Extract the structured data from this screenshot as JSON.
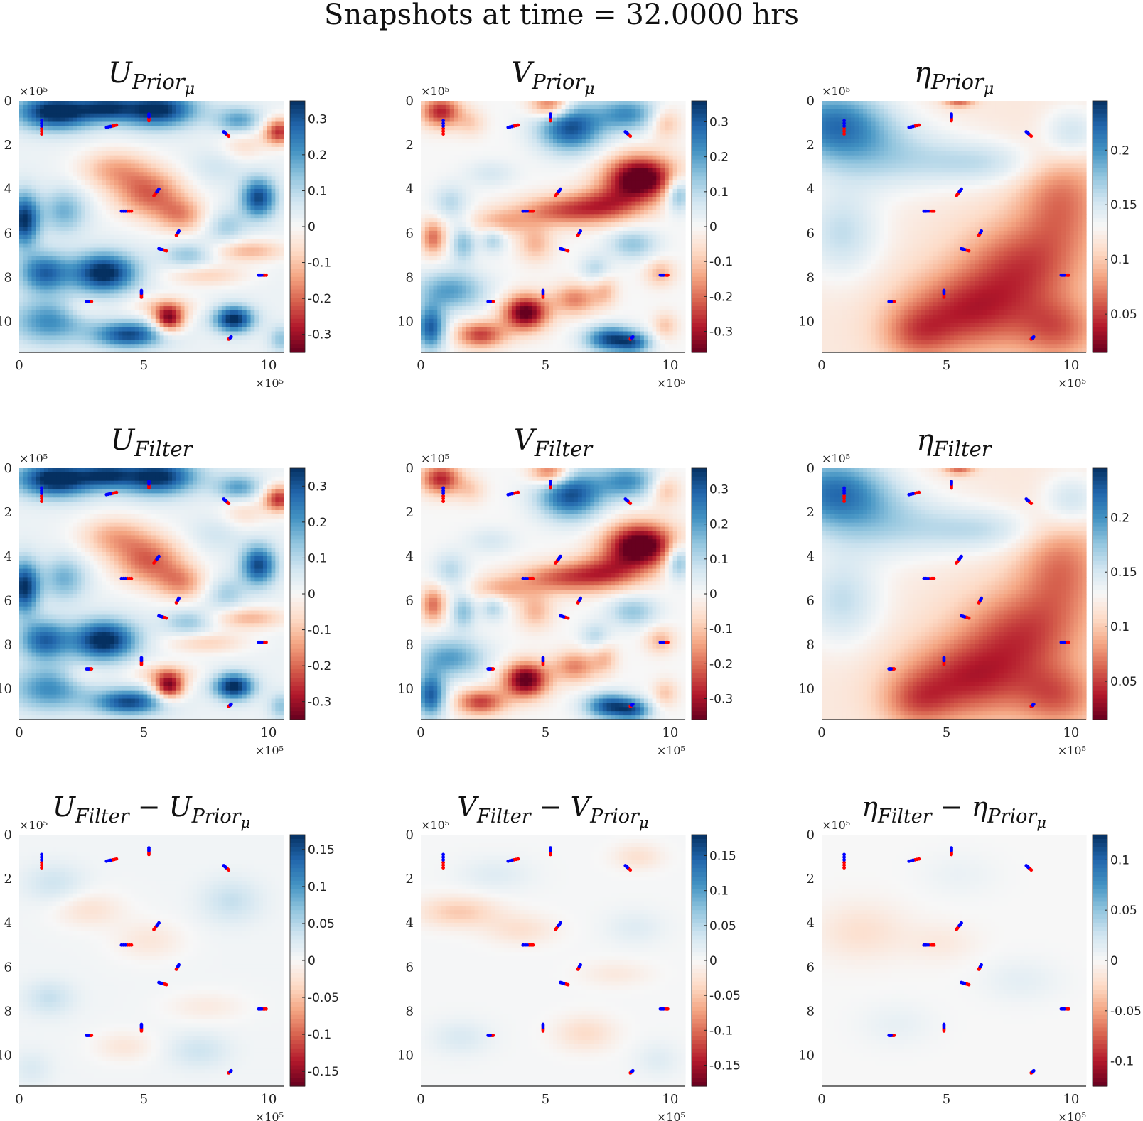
{
  "chart_data": {
    "type": "heatmap",
    "title": "Snapshots at time = 32.0000 hrs",
    "colormap": [
      "#67001f",
      "#b2182b",
      "#d6604d",
      "#f4a582",
      "#fddbc7",
      "#f7f7f7",
      "#d1e5f0",
      "#92c5de",
      "#4393c3",
      "#2166ac",
      "#053061"
    ],
    "colors": {
      "drifter_start": "#ff0000",
      "drifter_end": "#0000ff",
      "axis": "#222222"
    },
    "axes": {
      "x_ticks": [
        "0",
        "5",
        "10"
      ],
      "y_ticks": [
        "0",
        "2",
        "4",
        "6",
        "8",
        "10"
      ],
      "x_multiplier": "×10⁵",
      "y_multiplier": "×10⁵",
      "xlim": [
        0,
        10.6
      ],
      "ylim": [
        0,
        11.4
      ]
    },
    "drifters": [
      {
        "x": 0.9,
        "y": 1.5,
        "dx": 0.0,
        "dy": -0.6
      },
      {
        "x": 3.9,
        "y": 1.1,
        "dx": -0.4,
        "dy": 0.1
      },
      {
        "x": 5.2,
        "y": 0.9,
        "dx": 0.0,
        "dy": -0.3
      },
      {
        "x": 8.4,
        "y": 1.6,
        "dx": -0.2,
        "dy": -0.2
      },
      {
        "x": 5.4,
        "y": 4.3,
        "dx": 0.2,
        "dy": -0.3
      },
      {
        "x": 4.5,
        "y": 5.0,
        "dx": -0.4,
        "dy": 0.0
      },
      {
        "x": 6.3,
        "y": 6.1,
        "dx": 0.1,
        "dy": -0.2
      },
      {
        "x": 5.9,
        "y": 6.8,
        "dx": -0.3,
        "dy": -0.1
      },
      {
        "x": 9.9,
        "y": 7.9,
        "dx": -0.3,
        "dy": 0.0
      },
      {
        "x": 4.9,
        "y": 8.9,
        "dx": 0.0,
        "dy": -0.3
      },
      {
        "x": 2.9,
        "y": 9.1,
        "dx": -0.2,
        "dy": 0.0
      },
      {
        "x": 8.4,
        "y": 10.8,
        "dx": 0.1,
        "dy": -0.1
      }
    ],
    "panels": [
      {
        "title": "U_{Prior_μ}",
        "field": "U",
        "scale": 1.0,
        "colorbar": {
          "min": -0.35,
          "max": 0.35,
          "ticks": [
            0.3,
            0.2,
            0.1,
            0,
            -0.1,
            -0.2,
            -0.3
          ],
          "labels": [
            "0.3",
            "0.2",
            "0.1",
            "0",
            "-0.1",
            "-0.2",
            "-0.3"
          ]
        }
      },
      {
        "title": "V_{Prior_μ}",
        "field": "V",
        "scale": 1.0,
        "colorbar": {
          "min": -0.36,
          "max": 0.36,
          "ticks": [
            0.3,
            0.2,
            0.1,
            0,
            -0.1,
            -0.2,
            -0.3
          ],
          "labels": [
            "0.3",
            "0.2",
            "0.1",
            "0",
            "-0.1",
            "-0.2",
            "-0.3"
          ]
        }
      },
      {
        "title": "η_{Prior_μ}",
        "field": "ETA",
        "scale": 1.0,
        "colorbar": {
          "min": 0.015,
          "max": 0.245,
          "ticks": [
            0.2,
            0.15,
            0.1,
            0.05
          ],
          "labels": [
            "0.2",
            "0.15",
            "0.1",
            "0.05"
          ]
        }
      },
      {
        "title": "U_{Filter}",
        "field": "U",
        "scale": 1.0,
        "colorbar": {
          "min": -0.35,
          "max": 0.35,
          "ticks": [
            0.3,
            0.2,
            0.1,
            0,
            -0.1,
            -0.2,
            -0.3
          ],
          "labels": [
            "0.3",
            "0.2",
            "0.1",
            "0",
            "-0.1",
            "-0.2",
            "-0.3"
          ]
        }
      },
      {
        "title": "V_{Filter}",
        "field": "V",
        "scale": 1.0,
        "colorbar": {
          "min": -0.36,
          "max": 0.36,
          "ticks": [
            0.3,
            0.2,
            0.1,
            0,
            -0.1,
            -0.2,
            -0.3
          ],
          "labels": [
            "0.3",
            "0.2",
            "0.1",
            "0",
            "-0.1",
            "-0.2",
            "-0.3"
          ]
        }
      },
      {
        "title": "η_{Filter}",
        "field": "ETA",
        "scale": 1.0,
        "colorbar": {
          "min": 0.015,
          "max": 0.245,
          "ticks": [
            0.2,
            0.15,
            0.1,
            0.05
          ],
          "labels": [
            "0.2",
            "0.15",
            "0.1",
            "0.05"
          ]
        }
      },
      {
        "title": "U_{Filter} − U_{Prior_μ}",
        "field": "DU",
        "scale": 1.0,
        "colorbar": {
          "min": -0.17,
          "max": 0.17,
          "ticks": [
            0.15,
            0.1,
            0.05,
            0,
            -0.05,
            -0.1,
            -0.15
          ],
          "labels": [
            "0.15",
            "0.1",
            "0.05",
            "0",
            "-0.05",
            "-0.1",
            "-0.15"
          ]
        }
      },
      {
        "title": "V_{Filter} − V_{Prior_μ}",
        "field": "DV",
        "scale": 1.0,
        "colorbar": {
          "min": -0.18,
          "max": 0.18,
          "ticks": [
            0.15,
            0.1,
            0.05,
            0,
            -0.05,
            -0.1,
            -0.15
          ],
          "labels": [
            "0.15",
            "0.1",
            "0.05",
            "0",
            "-0.05",
            "-0.1",
            "-0.15"
          ]
        }
      },
      {
        "title": "η_{Filter} − η_{Prior_μ}",
        "field": "DETA",
        "scale": 1.0,
        "colorbar": {
          "min": -0.125,
          "max": 0.125,
          "ticks": [
            0.1,
            0.05,
            0,
            -0.05,
            -0.1
          ],
          "labels": [
            "0.1",
            "0.05",
            "0",
            "-0.05",
            "-0.1"
          ]
        }
      }
    ],
    "fields": {
      "U": {
        "base": 0.02,
        "blobs": [
          [
            1.5,
            0.5,
            1.6,
            0.8,
            0.38
          ],
          [
            5.5,
            0.4,
            1.6,
            0.8,
            0.35
          ],
          [
            8.8,
            0.9,
            0.9,
            0.6,
            0.18
          ],
          [
            3.5,
            0.3,
            1.0,
            0.6,
            0.2
          ],
          [
            10.4,
            1.4,
            0.6,
            0.6,
            -0.28
          ],
          [
            9.0,
            2.0,
            0.9,
            0.8,
            -0.08
          ],
          [
            3.8,
            3.1,
            1.4,
            0.9,
            -0.14
          ],
          [
            5.2,
            4.2,
            1.4,
            1.1,
            -0.22
          ],
          [
            6.5,
            5.2,
            1.0,
            0.8,
            -0.16
          ],
          [
            0.2,
            5.4,
            0.6,
            1.2,
            0.33
          ],
          [
            1.8,
            5.0,
            0.9,
            1.0,
            0.15
          ],
          [
            9.6,
            4.4,
            0.7,
            0.9,
            0.3
          ],
          [
            8.3,
            5.7,
            0.8,
            0.8,
            0.1
          ],
          [
            3.4,
            7.8,
            1.3,
            0.9,
            0.36
          ],
          [
            1.0,
            7.8,
            1.0,
            0.9,
            0.26
          ],
          [
            6.8,
            7.0,
            1.0,
            0.6,
            0.12
          ],
          [
            9.2,
            6.8,
            1.5,
            0.5,
            -0.14
          ],
          [
            7.5,
            7.9,
            1.6,
            0.5,
            -0.1
          ],
          [
            5.8,
            9.3,
            1.3,
            0.5,
            -0.1
          ],
          [
            6.0,
            9.9,
            0.6,
            0.6,
            -0.34
          ],
          [
            8.6,
            9.9,
            0.8,
            0.6,
            0.35
          ],
          [
            4.4,
            10.6,
            1.4,
            0.6,
            0.3
          ],
          [
            1.2,
            10.0,
            1.5,
            1.0,
            0.2
          ],
          [
            2.5,
            9.4,
            0.8,
            0.5,
            -0.06
          ],
          [
            10.5,
            10.8,
            0.5,
            0.6,
            0.12
          ],
          [
            8.0,
            3.0,
            1.2,
            0.8,
            0.05
          ]
        ]
      },
      "V": {
        "base": 0.0,
        "blobs": [
          [
            0.8,
            0.5,
            0.8,
            0.7,
            -0.28
          ],
          [
            2.0,
            1.0,
            0.6,
            0.6,
            -0.08
          ],
          [
            6.0,
            1.2,
            1.3,
            1.1,
            0.32
          ],
          [
            5.2,
            0.2,
            0.8,
            0.6,
            -0.25
          ],
          [
            8.3,
            0.6,
            1.2,
            0.8,
            0.22
          ],
          [
            9.8,
            1.0,
            0.6,
            0.7,
            -0.12
          ],
          [
            8.8,
            3.5,
            1.4,
            1.0,
            -0.42
          ],
          [
            7.5,
            4.7,
            1.5,
            0.8,
            -0.2
          ],
          [
            5.6,
            5.0,
            1.8,
            0.7,
            -0.2
          ],
          [
            3.2,
            5.5,
            1.2,
            0.6,
            -0.12
          ],
          [
            1.2,
            4.6,
            0.7,
            0.8,
            0.1
          ],
          [
            10.3,
            4.2,
            0.5,
            0.8,
            0.2
          ],
          [
            0.5,
            6.2,
            0.5,
            0.8,
            -0.2
          ],
          [
            1.7,
            6.5,
            0.5,
            0.8,
            0.15
          ],
          [
            2.9,
            6.3,
            0.5,
            0.6,
            0.12
          ],
          [
            4.6,
            6.5,
            0.7,
            0.8,
            -0.12
          ],
          [
            7.0,
            7.6,
            0.6,
            0.6,
            0.1
          ],
          [
            8.5,
            6.5,
            1.0,
            0.7,
            0.14
          ],
          [
            9.6,
            7.8,
            0.6,
            0.6,
            -0.12
          ],
          [
            1.2,
            8.6,
            1.4,
            0.9,
            0.2
          ],
          [
            0.4,
            10.3,
            0.6,
            1.0,
            0.3
          ],
          [
            4.2,
            9.6,
            0.9,
            0.8,
            -0.38
          ],
          [
            2.4,
            10.6,
            1.0,
            0.6,
            -0.25
          ],
          [
            6.2,
            9.0,
            0.9,
            0.7,
            -0.18
          ],
          [
            7.6,
            10.8,
            1.0,
            0.6,
            0.32
          ],
          [
            8.6,
            11.0,
            0.7,
            0.5,
            0.2
          ],
          [
            9.8,
            10.2,
            0.5,
            0.6,
            -0.1
          ],
          [
            7.4,
            8.6,
            0.5,
            0.7,
            -0.1
          ],
          [
            2.8,
            3.3,
            1.0,
            0.6,
            0.06
          ]
        ]
      },
      "ETA": {
        "base": 0.118,
        "blobs": [
          [
            0.5,
            1.0,
            2.2,
            1.6,
            0.09
          ],
          [
            2.5,
            2.5,
            3.0,
            1.6,
            0.04
          ],
          [
            6.5,
            2.8,
            2.5,
            1.0,
            0.035
          ],
          [
            0.8,
            6.0,
            1.6,
            2.0,
            0.04
          ],
          [
            9.6,
            4.5,
            1.7,
            2.4,
            -0.05
          ],
          [
            8.0,
            7.5,
            2.4,
            2.0,
            -0.06
          ],
          [
            5.8,
            9.6,
            2.6,
            1.8,
            -0.07
          ],
          [
            9.5,
            10.4,
            1.6,
            1.4,
            -0.05
          ],
          [
            3.8,
            10.6,
            1.4,
            1.2,
            -0.04
          ],
          [
            5.5,
            0.0,
            0.6,
            0.3,
            -0.06
          ],
          [
            10.0,
            1.5,
            1.2,
            1.2,
            0.04
          ]
        ]
      },
      "DU": {
        "base": 0.005,
        "blobs": [
          [
            2.8,
            3.4,
            1.4,
            0.8,
            -0.03
          ],
          [
            5.2,
            4.8,
            1.4,
            0.9,
            -0.025
          ],
          [
            7.5,
            7.8,
            1.6,
            0.7,
            -0.02
          ],
          [
            4.2,
            9.6,
            1.2,
            0.7,
            -0.025
          ],
          [
            1.4,
            2.2,
            1.2,
            0.9,
            0.03
          ],
          [
            8.5,
            3.0,
            1.2,
            1.0,
            0.035
          ],
          [
            1.2,
            7.4,
            1.0,
            0.8,
            0.035
          ],
          [
            7.2,
            9.8,
            1.2,
            0.8,
            0.03
          ],
          [
            0.5,
            10.6,
            0.8,
            0.8,
            0.02
          ]
        ]
      },
      "DV": {
        "base": 0.002,
        "blobs": [
          [
            1.5,
            3.5,
            1.6,
            0.7,
            -0.05
          ],
          [
            4.0,
            4.3,
            1.4,
            0.7,
            -0.03
          ],
          [
            7.8,
            6.3,
            1.4,
            0.6,
            -0.02
          ],
          [
            6.6,
            9.0,
            1.2,
            0.8,
            -0.035
          ],
          [
            3.0,
            1.8,
            1.5,
            0.8,
            0.02
          ],
          [
            8.6,
            4.2,
            1.2,
            0.8,
            0.02
          ],
          [
            1.6,
            9.2,
            1.2,
            0.8,
            0.025
          ],
          [
            9.5,
            10.2,
            0.9,
            0.8,
            0.02
          ],
          [
            8.7,
            1.0,
            1.0,
            0.6,
            -0.03
          ]
        ]
      },
      "DETA": {
        "base": 0.0,
        "blobs": [
          [
            1.6,
            4.4,
            1.8,
            1.3,
            -0.02
          ],
          [
            4.8,
            4.9,
            1.4,
            0.9,
            -0.012
          ],
          [
            8.0,
            6.6,
            1.6,
            1.0,
            0.012
          ],
          [
            3.0,
            8.6,
            1.5,
            1.0,
            0.01
          ],
          [
            5.5,
            1.8,
            1.6,
            1.0,
            0.008
          ]
        ]
      }
    }
  }
}
